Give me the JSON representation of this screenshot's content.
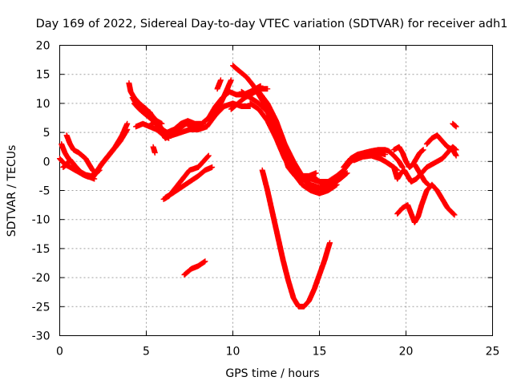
{
  "chart_data": {
    "type": "scatter",
    "title": "Day 169 of 2022, Sidereal Day-to-day VTEC variation (SDTVAR) for receiver adh1",
    "xlabel": "GPS time / hours",
    "ylabel": "SDTVAR / TECUs",
    "xlim": [
      0,
      25
    ],
    "ylim": [
      -30,
      20
    ],
    "xticks": [
      "0",
      "5",
      "10",
      "15",
      "20",
      "25"
    ],
    "yticks": [
      "20",
      "15",
      "10",
      "5",
      "0",
      "-5",
      "-10",
      "-15",
      "-20",
      "-25",
      "-30"
    ],
    "grid": true,
    "marker": "+",
    "color": "#ff0000",
    "series": [
      {
        "points": [
          [
            0.1,
            3.0
          ],
          [
            0.3,
            1.5
          ],
          [
            0.5,
            0.5
          ],
          [
            0.8,
            -0.5
          ],
          [
            1.0,
            -1.5
          ],
          [
            1.3,
            -2.2
          ],
          [
            1.6,
            -2.6
          ],
          [
            1.9,
            -2.8
          ],
          [
            2.1,
            -2.0
          ],
          [
            2.4,
            -0.5
          ],
          [
            2.8,
            1.0
          ],
          [
            3.2,
            2.5
          ],
          [
            3.6,
            4.5
          ],
          [
            3.9,
            6.5
          ]
        ]
      },
      {
        "points": [
          [
            0.2,
            -1.0
          ],
          [
            0.4,
            -0.5
          ],
          [
            0.6,
            0.3
          ],
          [
            0.9,
            -0.8
          ],
          [
            1.2,
            -1.8
          ],
          [
            1.5,
            -2.3
          ],
          [
            1.8,
            -2.5
          ],
          [
            2.0,
            -2.2
          ],
          [
            2.3,
            -1.0
          ],
          [
            2.7,
            0.5
          ],
          [
            3.1,
            2.0
          ],
          [
            3.5,
            3.5
          ],
          [
            3.9,
            5.5
          ]
        ]
      },
      {
        "points": [
          [
            0.4,
            4.5
          ],
          [
            0.6,
            3.0
          ],
          [
            0.8,
            2.0
          ],
          [
            1.1,
            1.5
          ],
          [
            1.3,
            1.0
          ],
          [
            1.5,
            0.5
          ],
          [
            1.7,
            -0.5
          ],
          [
            1.9,
            -1.5
          ],
          [
            2.1,
            -2.0
          ],
          [
            2.3,
            -1.5
          ]
        ]
      },
      {
        "points": [
          [
            0.0,
            0.5
          ],
          [
            0.3,
            -0.5
          ],
          [
            0.6,
            -1.0
          ],
          [
            0.9,
            -1.5
          ],
          [
            1.2,
            -2.0
          ],
          [
            1.6,
            -2.5
          ],
          [
            2.0,
            -3.0
          ]
        ]
      },
      {
        "points": [
          [
            4.0,
            13.5
          ],
          [
            4.1,
            12.0
          ],
          [
            4.3,
            11.0
          ],
          [
            4.6,
            10.0
          ],
          [
            5.0,
            9.0
          ],
          [
            5.3,
            8.0
          ],
          [
            5.6,
            7.0
          ],
          [
            5.9,
            5.5
          ],
          [
            6.2,
            5.0
          ],
          [
            6.6,
            5.5
          ],
          [
            7.0,
            6.5
          ],
          [
            7.4,
            7.0
          ],
          [
            7.8,
            6.5
          ],
          [
            8.2,
            6.5
          ],
          [
            8.6,
            7.5
          ],
          [
            9.0,
            9.5
          ],
          [
            9.4,
            11.0
          ],
          [
            9.8,
            12.0
          ],
          [
            10.2,
            11.5
          ],
          [
            10.6,
            11.5
          ],
          [
            11.0,
            12.0
          ],
          [
            11.3,
            12.5
          ],
          [
            11.6,
            13.0
          ]
        ]
      },
      {
        "points": [
          [
            4.2,
            11.0
          ],
          [
            4.5,
            9.5
          ],
          [
            4.8,
            9.0
          ],
          [
            5.2,
            8.5
          ],
          [
            5.5,
            7.0
          ],
          [
            5.8,
            6.0
          ],
          [
            6.1,
            5.0
          ],
          [
            6.5,
            4.5
          ],
          [
            7.0,
            5.0
          ],
          [
            7.5,
            5.5
          ],
          [
            8.0,
            5.5
          ],
          [
            8.5,
            6.0
          ],
          [
            9.0,
            8.0
          ],
          [
            9.5,
            9.5
          ],
          [
            10.0,
            10.0
          ],
          [
            10.5,
            9.5
          ],
          [
            11.0,
            9.5
          ]
        ]
      },
      {
        "points": [
          [
            4.3,
            10.0
          ],
          [
            4.6,
            9.0
          ],
          [
            5.0,
            8.0
          ],
          [
            5.4,
            7.0
          ],
          [
            5.8,
            5.5
          ],
          [
            6.1,
            4.0
          ],
          [
            6.4,
            4.5
          ],
          [
            6.8,
            5.5
          ],
          [
            7.3,
            6.5
          ],
          [
            7.8,
            6.0
          ],
          [
            8.3,
            6.5
          ]
        ]
      },
      {
        "points": [
          [
            4.4,
            6.0
          ],
          [
            4.8,
            6.5
          ],
          [
            5.2,
            6.0
          ],
          [
            5.6,
            5.5
          ],
          [
            6.0,
            4.5
          ],
          [
            6.3,
            4.0
          ]
        ]
      },
      {
        "points": [
          [
            5.3,
            6.5
          ],
          [
            5.6,
            7.0
          ],
          [
            5.9,
            6.5
          ]
        ]
      },
      {
        "points": [
          [
            5.4,
            2.5
          ],
          [
            5.5,
            1.5
          ]
        ]
      },
      {
        "points": [
          [
            6.0,
            -6.5
          ],
          [
            6.3,
            -6.0
          ],
          [
            6.7,
            -4.5
          ],
          [
            7.1,
            -3.0
          ],
          [
            7.5,
            -1.5
          ],
          [
            8.0,
            -1.0
          ],
          [
            8.3,
            0.0
          ],
          [
            8.6,
            1.0
          ]
        ]
      },
      {
        "points": [
          [
            6.1,
            -6.2
          ],
          [
            6.5,
            -5.5
          ],
          [
            7.0,
            -4.5
          ],
          [
            7.5,
            -3.5
          ],
          [
            8.0,
            -2.5
          ],
          [
            8.4,
            -1.5
          ],
          [
            8.8,
            -1.0
          ]
        ]
      },
      {
        "points": [
          [
            7.2,
            -19.5
          ],
          [
            7.6,
            -18.5
          ],
          [
            8.0,
            -18.0
          ],
          [
            8.4,
            -17.2
          ]
        ]
      },
      {
        "points": [
          [
            9.0,
            8.0
          ],
          [
            9.3,
            10.0
          ],
          [
            9.6,
            12.0
          ],
          [
            9.9,
            14.0
          ]
        ]
      },
      {
        "points": [
          [
            9.1,
            12.5
          ],
          [
            9.3,
            14.0
          ]
        ]
      },
      {
        "points": [
          [
            9.9,
            9.0
          ],
          [
            10.3,
            10.0
          ],
          [
            10.7,
            11.0
          ],
          [
            11.0,
            11.5
          ],
          [
            11.3,
            12.0
          ],
          [
            11.6,
            12.5
          ],
          [
            12.0,
            12.5
          ]
        ]
      },
      {
        "points": [
          [
            10.0,
            16.5
          ],
          [
            10.4,
            15.5
          ],
          [
            10.8,
            14.5
          ],
          [
            11.2,
            13.0
          ],
          [
            11.6,
            11.0
          ],
          [
            12.0,
            9.0
          ],
          [
            12.4,
            7.0
          ],
          [
            12.8,
            4.0
          ],
          [
            13.2,
            1.0
          ],
          [
            13.6,
            -1.5
          ],
          [
            14.0,
            -3.0
          ],
          [
            14.5,
            -4.0
          ],
          [
            15.0,
            -4.5
          ],
          [
            15.5,
            -4.0
          ]
        ]
      },
      {
        "points": [
          [
            10.5,
            12.0
          ],
          [
            11.0,
            11.0
          ],
          [
            11.5,
            10.0
          ],
          [
            12.0,
            8.5
          ],
          [
            12.5,
            5.5
          ],
          [
            13.0,
            2.0
          ],
          [
            13.5,
            -1.0
          ],
          [
            14.0,
            -3.0
          ],
          [
            14.5,
            -3.0
          ],
          [
            15.0,
            -3.5
          ],
          [
            15.5,
            -3.5
          ],
          [
            16.0,
            -3.0
          ]
        ]
      },
      {
        "points": [
          [
            11.0,
            10.0
          ],
          [
            11.5,
            9.0
          ],
          [
            12.0,
            7.0
          ],
          [
            12.5,
            4.0
          ],
          [
            13.0,
            0.5
          ],
          [
            13.5,
            -2.0
          ],
          [
            14.0,
            -4.0
          ],
          [
            14.5,
            -5.0
          ],
          [
            15.0,
            -5.5
          ],
          [
            15.5,
            -4.5
          ],
          [
            16.0,
            -3.5
          ],
          [
            16.5,
            -2.0
          ]
        ]
      },
      {
        "points": [
          [
            11.5,
            12.0
          ],
          [
            12.0,
            10.0
          ],
          [
            12.5,
            7.0
          ],
          [
            13.0,
            3.0
          ],
          [
            13.5,
            0.0
          ],
          [
            14.0,
            -2.5
          ],
          [
            14.5,
            -4.5
          ],
          [
            15.0,
            -5.5
          ],
          [
            15.5,
            -5.0
          ],
          [
            16.0,
            -4.0
          ]
        ]
      },
      {
        "points": [
          [
            12.5,
            7.0
          ],
          [
            12.9,
            2.0
          ],
          [
            13.2,
            -1.0
          ],
          [
            13.6,
            -2.5
          ],
          [
            14.0,
            -2.5
          ],
          [
            14.4,
            -2.5
          ],
          [
            14.8,
            -2.0
          ]
        ]
      },
      {
        "points": [
          [
            14.2,
            -3.0
          ],
          [
            14.6,
            -2.5
          ],
          [
            15.0,
            -3.5
          ],
          [
            15.4,
            -3.5
          ],
          [
            15.8,
            -3.5
          ],
          [
            16.2,
            -3.0
          ],
          [
            16.6,
            -2.0
          ]
        ]
      },
      {
        "points": [
          [
            11.7,
            -1.5
          ],
          [
            12.0,
            -5.0
          ],
          [
            12.3,
            -9.0
          ],
          [
            12.6,
            -13.0
          ],
          [
            12.9,
            -17.0
          ],
          [
            13.2,
            -20.5
          ],
          [
            13.5,
            -23.5
          ],
          [
            13.8,
            -25.0
          ],
          [
            14.1,
            -25.0
          ],
          [
            14.4,
            -24.0
          ],
          [
            14.7,
            -22.0
          ],
          [
            15.0,
            -19.5
          ],
          [
            15.3,
            -17.0
          ],
          [
            15.6,
            -14.0
          ]
        ]
      },
      {
        "points": [
          [
            15.5,
            -3.5
          ],
          [
            16.0,
            -2.5
          ],
          [
            16.4,
            -1.5
          ],
          [
            16.8,
            0.0
          ],
          [
            17.2,
            0.8
          ],
          [
            17.6,
            1.2
          ],
          [
            18.0,
            1.5
          ],
          [
            18.4,
            1.5
          ],
          [
            18.8,
            1.2
          ]
        ]
      },
      {
        "points": [
          [
            16.4,
            -1.0
          ],
          [
            16.8,
            0.5
          ],
          [
            17.2,
            1.2
          ],
          [
            17.6,
            1.5
          ],
          [
            18.0,
            1.8
          ],
          [
            18.4,
            2.0
          ],
          [
            18.8,
            2.0
          ],
          [
            19.0,
            1.8
          ],
          [
            19.3,
            1.0
          ],
          [
            19.6,
            0.0
          ],
          [
            19.8,
            -1.0
          ]
        ]
      },
      {
        "points": [
          [
            17.0,
            0.2
          ],
          [
            17.5,
            0.8
          ],
          [
            18.0,
            1.0
          ],
          [
            18.5,
            0.5
          ],
          [
            18.8,
            0.0
          ],
          [
            19.2,
            -0.8
          ],
          [
            19.5,
            -1.5
          ]
        ]
      },
      {
        "points": [
          [
            19.3,
            2.0
          ],
          [
            19.6,
            2.5
          ],
          [
            19.8,
            1.5
          ],
          [
            20.0,
            0.0
          ],
          [
            20.2,
            -1.0
          ],
          [
            20.4,
            -0.5
          ],
          [
            20.6,
            0.5
          ],
          [
            20.8,
            1.5
          ],
          [
            21.0,
            2.0
          ]
        ]
      },
      {
        "points": [
          [
            19.3,
            -1.0
          ],
          [
            19.5,
            -3.0
          ],
          [
            19.7,
            -2.0
          ],
          [
            19.9,
            -1.5
          ],
          [
            20.1,
            -2.5
          ],
          [
            20.3,
            -3.5
          ],
          [
            20.6,
            -3.0
          ],
          [
            20.9,
            -2.0
          ],
          [
            21.2,
            -1.0
          ],
          [
            21.5,
            -0.5
          ],
          [
            21.8,
            0.0
          ],
          [
            22.1,
            0.5
          ],
          [
            22.4,
            1.5
          ],
          [
            22.7,
            2.5
          ],
          [
            22.9,
            2.0
          ]
        ]
      },
      {
        "points": [
          [
            20.5,
            -0.5
          ],
          [
            20.7,
            -1.5
          ],
          [
            20.9,
            -2.5
          ],
          [
            21.1,
            -3.5
          ],
          [
            21.3,
            -4.0
          ]
        ]
      },
      {
        "points": [
          [
            19.5,
            -9.0
          ],
          [
            19.8,
            -8.0
          ],
          [
            20.1,
            -7.5
          ],
          [
            20.3,
            -9.0
          ],
          [
            20.5,
            -10.5
          ],
          [
            20.7,
            -9.5
          ],
          [
            20.9,
            -7.5
          ],
          [
            21.2,
            -5.0
          ],
          [
            21.5,
            -4.0
          ],
          [
            21.8,
            -5.0
          ],
          [
            22.1,
            -6.5
          ],
          [
            22.4,
            -8.0
          ],
          [
            22.8,
            -9.2
          ]
        ]
      },
      {
        "points": [
          [
            21.2,
            3.0
          ],
          [
            21.5,
            4.0
          ],
          [
            21.8,
            4.5
          ],
          [
            22.1,
            3.5
          ],
          [
            22.4,
            2.5
          ],
          [
            22.7,
            2.0
          ],
          [
            22.9,
            1.0
          ]
        ]
      },
      {
        "points": [
          [
            22.7,
            6.5
          ],
          [
            22.9,
            6.0
          ]
        ]
      }
    ]
  }
}
